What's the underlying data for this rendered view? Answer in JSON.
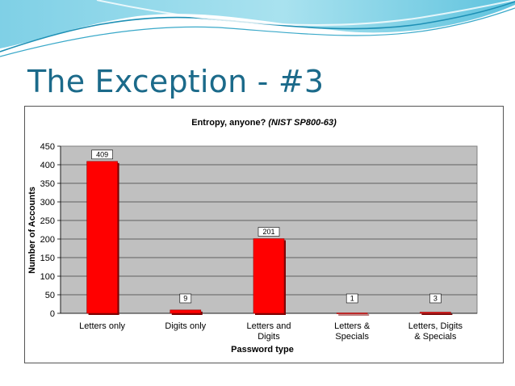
{
  "slide": {
    "title": "The Exception - #3"
  },
  "chart_data": {
    "type": "bar",
    "title": "Entropy, anyone?",
    "title_note": "(NIST SP800-63)",
    "xlabel": "Password type",
    "ylabel": "Number of Accounts",
    "categories": [
      "Letters only",
      "Digits only",
      "Letters and Digits",
      "Letters & Specials",
      "Letters, Digits & Specials"
    ],
    "values": [
      409,
      9,
      201,
      1,
      3
    ],
    "ylim": [
      0,
      450
    ],
    "yticks": [
      0,
      50,
      100,
      150,
      200,
      250,
      300,
      350,
      400,
      450
    ],
    "grid": true,
    "legend": "none",
    "colors": {
      "bar": "#ff0000",
      "bar_shadow": "#7a0000",
      "plot_bg": "#c0c0c0",
      "title": "#1b6a8a"
    }
  }
}
